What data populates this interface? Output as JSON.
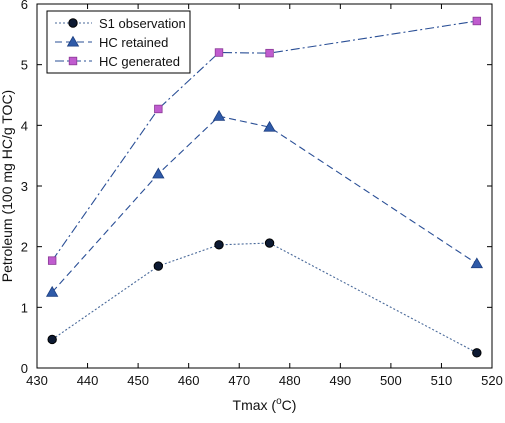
{
  "chart_data": {
    "type": "line",
    "xlabel": "Tmax (",
    "xlabel_sup": "o",
    "xlabel_tail": "C)",
    "ylabel": "Petroleum (100 mg HC/g TOC)",
    "xlim": [
      430,
      520
    ],
    "ylim": [
      0,
      6
    ],
    "xticks": [
      430,
      440,
      450,
      460,
      470,
      480,
      490,
      500,
      510,
      520
    ],
    "yticks": [
      0,
      1,
      2,
      3,
      4,
      5,
      6
    ],
    "grid": false,
    "legend_position": "top-left",
    "x": [
      433,
      454,
      466,
      476,
      517
    ],
    "series": [
      {
        "name": "S1 observation",
        "values": [
          0.47,
          1.68,
          2.03,
          2.06,
          0.25
        ],
        "marker": "circle",
        "line": "dotted",
        "marker_color": "#0d1a33",
        "line_color": "#4a6a9a"
      },
      {
        "name": "HC retained",
        "values": [
          1.25,
          3.2,
          4.15,
          3.97,
          1.72
        ],
        "marker": "triangle",
        "line": "dashed",
        "marker_color": "#2f5aa8",
        "line_color": "#2a4f96"
      },
      {
        "name": "HC generated",
        "values": [
          1.77,
          4.27,
          5.2,
          5.19,
          5.72
        ],
        "marker": "square",
        "line": "dash-dot",
        "marker_color": "#c05ccf",
        "line_color": "#2a4f96"
      }
    ]
  }
}
